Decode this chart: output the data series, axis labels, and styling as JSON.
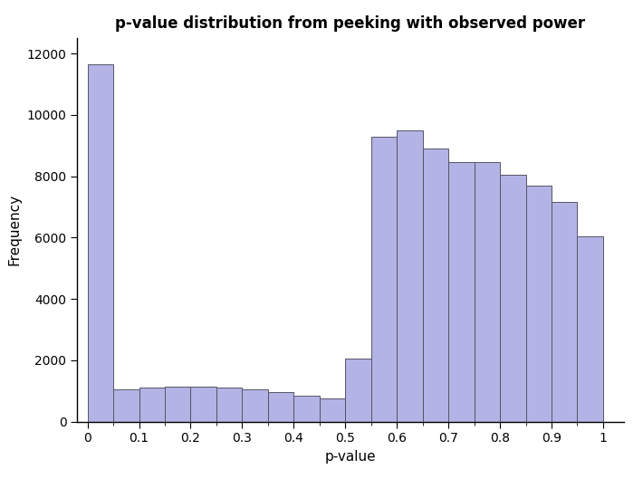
{
  "title": "p-value distribution from peeking with observed power",
  "xlabel": "p-value",
  "ylabel": "Frequency",
  "bar_color": "#b3b3e6",
  "bar_edge_color": "#555566",
  "background_color": "#ffffff",
  "xlim": [
    -0.01,
    1.02
  ],
  "ylim": [
    0,
    12500
  ],
  "yticks": [
    0,
    2000,
    4000,
    6000,
    8000,
    10000,
    12000
  ],
  "xticks": [
    0,
    0.1,
    0.2,
    0.3,
    0.4,
    0.5,
    0.6,
    0.7,
    0.8,
    0.9,
    1.0
  ],
  "bin_edges": [
    0.0,
    0.05,
    0.1,
    0.15,
    0.2,
    0.25,
    0.3,
    0.35,
    0.4,
    0.45,
    0.5,
    0.55,
    0.6,
    0.65,
    0.7,
    0.75,
    0.8,
    0.85,
    0.9,
    0.95,
    1.0
  ],
  "frequencies": [
    11650,
    1050,
    1100,
    1150,
    1150,
    1100,
    1050,
    950,
    850,
    750,
    2050,
    9300,
    9500,
    8900,
    8450,
    8450,
    8050,
    7700,
    7150,
    6050
  ],
  "title_fontsize": 12,
  "axis_label_fontsize": 11,
  "tick_fontsize": 10
}
